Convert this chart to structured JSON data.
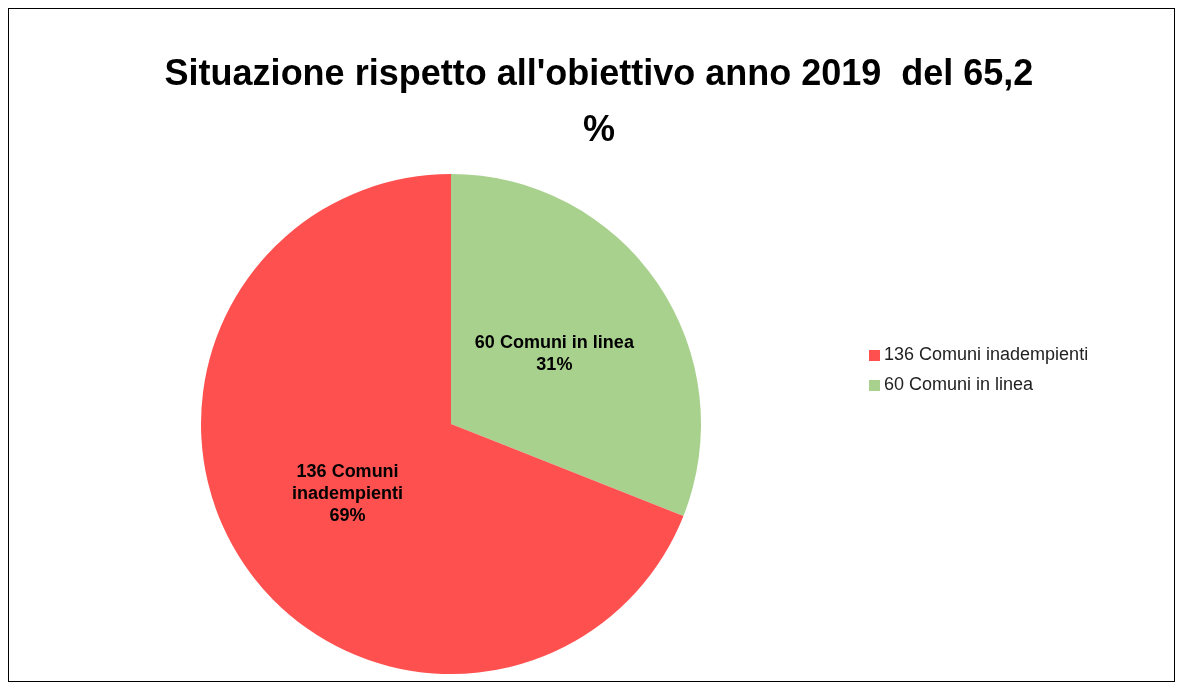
{
  "chart_data": {
    "type": "pie",
    "title": "Situazione rispetto all'obiettivo anno 2019  del 65,2 %",
    "categories": [
      "60 Comuni in linea",
      "136 Comuni inadempienti"
    ],
    "values": [
      31,
      69
    ],
    "colors": [
      "#a9d18e",
      "#ff5050"
    ],
    "value_labels": [
      "31%",
      "69%"
    ],
    "legend": "right"
  }
}
